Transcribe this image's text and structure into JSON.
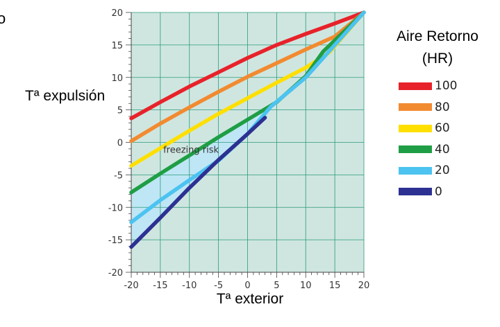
{
  "fragment_label": "o",
  "chart_data": {
    "type": "line",
    "title": "",
    "xlabel": "Tª exterior",
    "ylabel": "Tª expulsión",
    "xlim": [
      -20,
      20
    ],
    "ylim": [
      -20,
      20
    ],
    "xticks": [
      -20,
      -15,
      -10,
      -5,
      0,
      5,
      10,
      15,
      20
    ],
    "yticks": [
      -20,
      -15,
      -10,
      -5,
      0,
      5,
      10,
      15,
      20
    ],
    "grid": true,
    "background": "#cfe6e0",
    "legend_title_line1": "Aire Retorno",
    "legend_title_line2": "(HR)",
    "legend_position": "right",
    "annotation": {
      "text": "freezing risk",
      "x": -14.5,
      "y": -1.6,
      "fill": "#bfe6f5"
    },
    "series": [
      {
        "name": "100",
        "color": "#e8222a",
        "points": [
          [
            -20,
            3.7
          ],
          [
            -15,
            6.2
          ],
          [
            -10,
            8.6
          ],
          [
            -5,
            10.8
          ],
          [
            0,
            13.0
          ],
          [
            5,
            15.0
          ],
          [
            10,
            16.7
          ],
          [
            15,
            18.3
          ],
          [
            20,
            20.0
          ]
        ]
      },
      {
        "name": "80",
        "color": "#f28a30",
        "points": [
          [
            -20,
            0.2
          ],
          [
            -15,
            2.9
          ],
          [
            -10,
            5.4
          ],
          [
            -5,
            7.8
          ],
          [
            0,
            10.1
          ],
          [
            5,
            12.2
          ],
          [
            10,
            14.3
          ],
          [
            15,
            16.3
          ],
          [
            20,
            20.0
          ]
        ]
      },
      {
        "name": "60",
        "color": "#ffdf00",
        "points": [
          [
            -20,
            -3.6
          ],
          [
            -15,
            -0.9
          ],
          [
            -10,
            1.8
          ],
          [
            -5,
            4.4
          ],
          [
            0,
            6.8
          ],
          [
            5,
            9.2
          ],
          [
            10,
            11.5
          ],
          [
            14,
            13.8
          ],
          [
            20,
            20.0
          ]
        ]
      },
      {
        "name": "40",
        "color": "#1f9e45",
        "points": [
          [
            -20,
            -7.7
          ],
          [
            -15,
            -4.8
          ],
          [
            -10,
            -2.0
          ],
          [
            -5,
            0.8
          ],
          [
            0,
            3.5
          ],
          [
            5,
            6.2
          ],
          [
            10,
            10.2
          ],
          [
            13,
            14.0
          ],
          [
            20,
            20.0
          ]
        ]
      },
      {
        "name": "20",
        "color": "#4cc3f1",
        "points": [
          [
            -20,
            -12.3
          ],
          [
            -15,
            -8.9
          ],
          [
            -10,
            -5.8
          ],
          [
            -5,
            -2.8
          ],
          [
            0,
            1.3
          ],
          [
            4,
            5.5
          ],
          [
            10,
            10.0
          ],
          [
            15,
            15.0
          ],
          [
            20,
            20.0
          ]
        ]
      },
      {
        "name": "0",
        "color": "#2d3192",
        "points": [
          [
            -20,
            -16.1
          ],
          [
            -15,
            -11.6
          ],
          [
            -10,
            -7.0
          ],
          [
            -5,
            -2.7
          ],
          [
            0,
            1.3
          ],
          [
            3,
            3.8
          ]
        ]
      }
    ]
  }
}
